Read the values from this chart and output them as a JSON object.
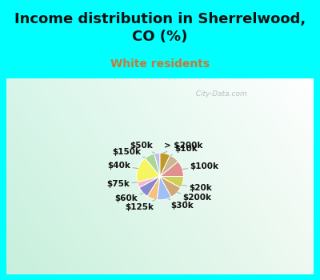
{
  "title": "Income distribution in Sherrelwood,\nCO (%)",
  "subtitle": "White residents",
  "background_color_cyan": "#00FFFF",
  "labels": [
    "> $200k",
    "$10k",
    "$100k",
    "$20k",
    "$200k",
    "$30k",
    "$125k",
    "$60k",
    "$75k",
    "$40k",
    "$150k",
    "$50k"
  ],
  "values": [
    4,
    7,
    18,
    4,
    8,
    7,
    10,
    9,
    8,
    11,
    7,
    7
  ],
  "colors": [
    "#c0c0e8",
    "#a8d898",
    "#f5f560",
    "#f8b8cc",
    "#8888cc",
    "#f5c080",
    "#a0c0f5",
    "#d0a878",
    "#d0d058",
    "#e09090",
    "#c8b890",
    "#c09828"
  ],
  "watermark": "  City-Data.com",
  "label_fontsize": 7.5,
  "title_fontsize": 13,
  "subtitle_fontsize": 10,
  "startangle": 90
}
